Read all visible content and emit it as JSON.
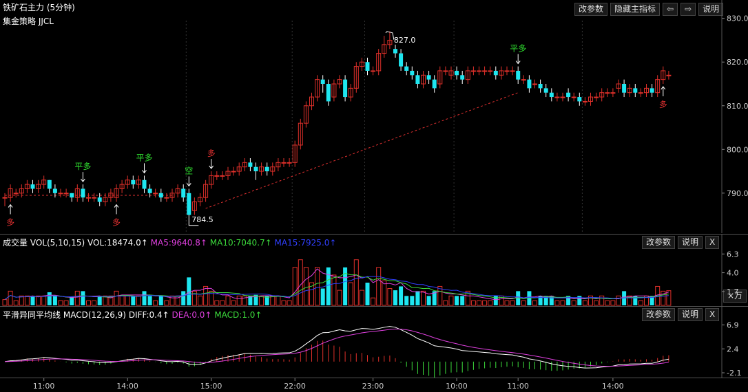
{
  "main_panel": {
    "title": "铁矿石主力 (5分钟)",
    "strategy": "集金策略 JJCL",
    "buttons": [
      "改参数",
      "隐藏主指标",
      "⇦",
      "⇨",
      "说明"
    ]
  },
  "volume_panel": {
    "label": "成交量",
    "indicator": "VOL(5,10,15)",
    "vol": "VOL:18474.0↑",
    "ma5": "MA5:9640.8↑",
    "ma10": "MA10:7040.7↑",
    "ma15": "MA15:7925.0↑",
    "buttons": [
      "改参数",
      "说明",
      "X"
    ],
    "unit_button": "×万",
    "y_ticks": [
      "6.3",
      "4.0",
      "1.7"
    ]
  },
  "macd_panel": {
    "label": "平滑异同平均线",
    "indicator": "MACD(12,26,9)",
    "diff": "DIFF:0.4↑",
    "dea": "DEA:0.0↑",
    "macd": "MACD:1.0↑",
    "buttons": [
      "改参数",
      "说明",
      "X"
    ],
    "y_ticks": [
      "6.9",
      "2.4",
      "-2.1"
    ]
  },
  "x_axis_labels": [
    "11:00",
    "14:00",
    "15:00",
    "22:00",
    "23:00",
    "10:00",
    "11:00",
    "14:00"
  ],
  "colors": {
    "up": "#e0302a",
    "down": "#1ee6f0",
    "ma5": "#e040e0",
    "ma10": "#3cdc3c",
    "ma15": "#3040ff",
    "diff": "#ffffff",
    "dea": "#e040e0",
    "signal_long": "#e03030",
    "signal_flat": "#30e030"
  },
  "chart_data": {
    "type": "candlestick",
    "y_ticks": [
      "830.0",
      "820.0",
      "810.0",
      "800.0",
      "790.0"
    ],
    "ylim": [
      781,
      832
    ],
    "annotations": [
      {
        "text": "827.0",
        "kind": "high"
      },
      {
        "text": "784.5",
        "kind": "low"
      }
    ],
    "signals": [
      {
        "text": "多",
        "bar": 1,
        "side": "below"
      },
      {
        "text": "平多",
        "bar": 14,
        "side": "above"
      },
      {
        "text": "多",
        "bar": 20,
        "side": "below"
      },
      {
        "text": "平多",
        "bar": 25,
        "side": "above"
      },
      {
        "text": "空",
        "bar": 33,
        "side": "above"
      },
      {
        "text": "多",
        "bar": 37,
        "side": "above"
      },
      {
        "text": "平多",
        "bar": 92,
        "side": "above"
      },
      {
        "text": "多",
        "bar": 118,
        "side": "below"
      }
    ],
    "candles": [
      [
        789,
        789,
        787,
        790
      ],
      [
        789,
        791,
        788,
        792
      ],
      [
        790,
        790,
        789,
        791
      ],
      [
        790,
        791,
        789,
        792
      ],
      [
        791,
        792,
        790,
        793
      ],
      [
        792,
        791,
        790,
        793
      ],
      [
        791,
        792,
        790,
        793
      ],
      [
        792,
        793,
        791,
        794
      ],
      [
        793,
        791,
        790,
        793
      ],
      [
        791,
        790,
        789,
        792
      ],
      [
        790,
        790,
        789,
        791
      ],
      [
        790,
        790,
        789,
        791
      ],
      [
        790,
        789,
        788,
        790
      ],
      [
        789,
        791,
        788,
        792
      ],
      [
        791,
        789,
        788,
        792
      ],
      [
        789,
        789,
        788,
        790
      ],
      [
        789,
        789,
        788,
        790
      ],
      [
        789,
        788,
        787,
        790
      ],
      [
        788,
        789,
        787,
        790
      ],
      [
        789,
        790,
        788,
        791
      ],
      [
        789,
        791,
        788,
        792
      ],
      [
        791,
        792,
        790,
        793
      ],
      [
        792,
        793,
        791,
        794
      ],
      [
        793,
        792,
        791,
        794
      ],
      [
        792,
        793,
        791,
        794
      ],
      [
        793,
        791,
        790,
        794
      ],
      [
        791,
        790,
        789,
        792
      ],
      [
        790,
        790,
        789,
        791
      ],
      [
        790,
        789,
        788,
        791
      ],
      [
        789,
        789,
        788,
        790
      ],
      [
        789,
        790,
        788,
        791
      ],
      [
        790,
        791,
        789,
        792
      ],
      [
        791,
        789,
        788,
        792
      ],
      [
        790,
        785,
        784.5,
        791
      ],
      [
        786,
        788,
        785,
        789
      ],
      [
        788,
        789,
        787,
        790
      ],
      [
        789,
        792,
        788,
        793
      ],
      [
        792,
        794,
        791,
        795
      ],
      [
        794,
        794,
        793,
        795
      ],
      [
        794,
        794,
        793,
        795
      ],
      [
        794,
        795,
        793,
        796
      ],
      [
        795,
        795,
        794,
        796
      ],
      [
        795,
        796,
        794,
        797
      ],
      [
        796,
        797,
        795,
        798
      ],
      [
        797,
        796,
        795,
        798
      ],
      [
        796,
        795,
        793,
        797
      ],
      [
        795,
        796,
        794,
        797
      ],
      [
        796,
        795,
        794,
        797
      ],
      [
        795,
        796,
        794,
        797
      ],
      [
        796,
        797,
        795,
        798
      ],
      [
        797,
        797,
        796,
        798
      ],
      [
        797,
        797,
        796,
        798
      ],
      [
        797,
        801,
        796,
        802
      ],
      [
        801,
        806,
        800,
        807
      ],
      [
        806,
        810,
        805,
        811
      ],
      [
        810,
        812,
        809,
        813
      ],
      [
        812,
        816,
        811,
        817
      ],
      [
        816,
        815,
        813,
        817
      ],
      [
        815,
        811,
        810,
        816
      ],
      [
        812,
        815,
        811,
        816
      ],
      [
        815,
        816,
        814,
        817
      ],
      [
        816,
        812,
        811,
        817
      ],
      [
        812,
        814,
        811,
        815
      ],
      [
        814,
        819,
        813,
        820
      ],
      [
        819,
        820,
        818,
        821
      ],
      [
        820,
        818,
        817,
        821
      ],
      [
        818,
        818,
        817,
        819
      ],
      [
        818,
        822,
        817,
        823
      ],
      [
        822,
        824,
        821,
        826
      ],
      [
        824,
        825,
        823,
        827
      ],
      [
        823,
        822,
        821,
        824
      ],
      [
        822,
        819,
        818,
        823
      ],
      [
        819,
        818,
        817,
        820
      ],
      [
        818,
        817,
        816,
        819
      ],
      [
        817,
        815,
        814,
        818
      ],
      [
        815,
        817,
        814,
        818
      ],
      [
        817,
        816,
        815,
        818
      ],
      [
        816,
        814,
        813,
        817
      ],
      [
        815,
        818,
        814,
        819
      ],
      [
        818,
        818,
        817,
        819
      ],
      [
        817,
        818,
        816,
        819
      ],
      [
        818,
        817,
        816,
        819
      ],
      [
        817,
        816,
        815,
        818
      ],
      [
        816,
        818,
        815,
        819
      ],
      [
        818,
        818,
        817,
        819
      ],
      [
        818,
        818,
        817,
        819
      ],
      [
        818,
        818,
        817,
        819
      ],
      [
        818,
        818,
        817,
        819
      ],
      [
        818,
        817,
        816,
        819
      ],
      [
        817,
        818,
        816,
        819
      ],
      [
        818,
        818,
        817,
        819
      ],
      [
        818,
        818,
        817,
        819
      ],
      [
        818,
        816,
        815,
        819
      ],
      [
        816,
        816,
        815,
        817
      ],
      [
        816,
        814,
        813,
        817
      ],
      [
        815,
        815,
        814,
        816
      ],
      [
        815,
        814,
        813,
        816
      ],
      [
        814,
        813,
        812,
        815
      ],
      [
        813,
        812,
        811,
        814
      ],
      [
        812,
        812,
        811,
        813
      ],
      [
        812,
        812,
        811,
        813
      ],
      [
        813,
        812,
        811,
        814
      ],
      [
        812,
        812,
        811,
        813
      ],
      [
        812,
        811,
        810,
        813
      ],
      [
        811,
        811,
        810,
        812
      ],
      [
        811,
        812,
        810,
        813
      ],
      [
        812,
        812,
        811,
        813
      ],
      [
        812,
        813,
        811,
        814
      ],
      [
        813,
        813,
        812,
        814
      ],
      [
        813,
        813,
        812,
        814
      ],
      [
        814,
        815,
        813,
        816
      ],
      [
        815,
        813,
        812,
        816
      ],
      [
        813,
        814,
        812,
        815
      ],
      [
        814,
        813,
        812,
        815
      ],
      [
        813,
        813,
        812,
        814
      ],
      [
        813,
        814,
        812,
        815
      ],
      [
        814,
        813,
        812,
        815
      ],
      [
        813,
        816,
        812,
        817
      ],
      [
        816,
        818,
        815,
        819
      ],
      [
        817,
        817,
        816,
        818
      ]
    ]
  }
}
